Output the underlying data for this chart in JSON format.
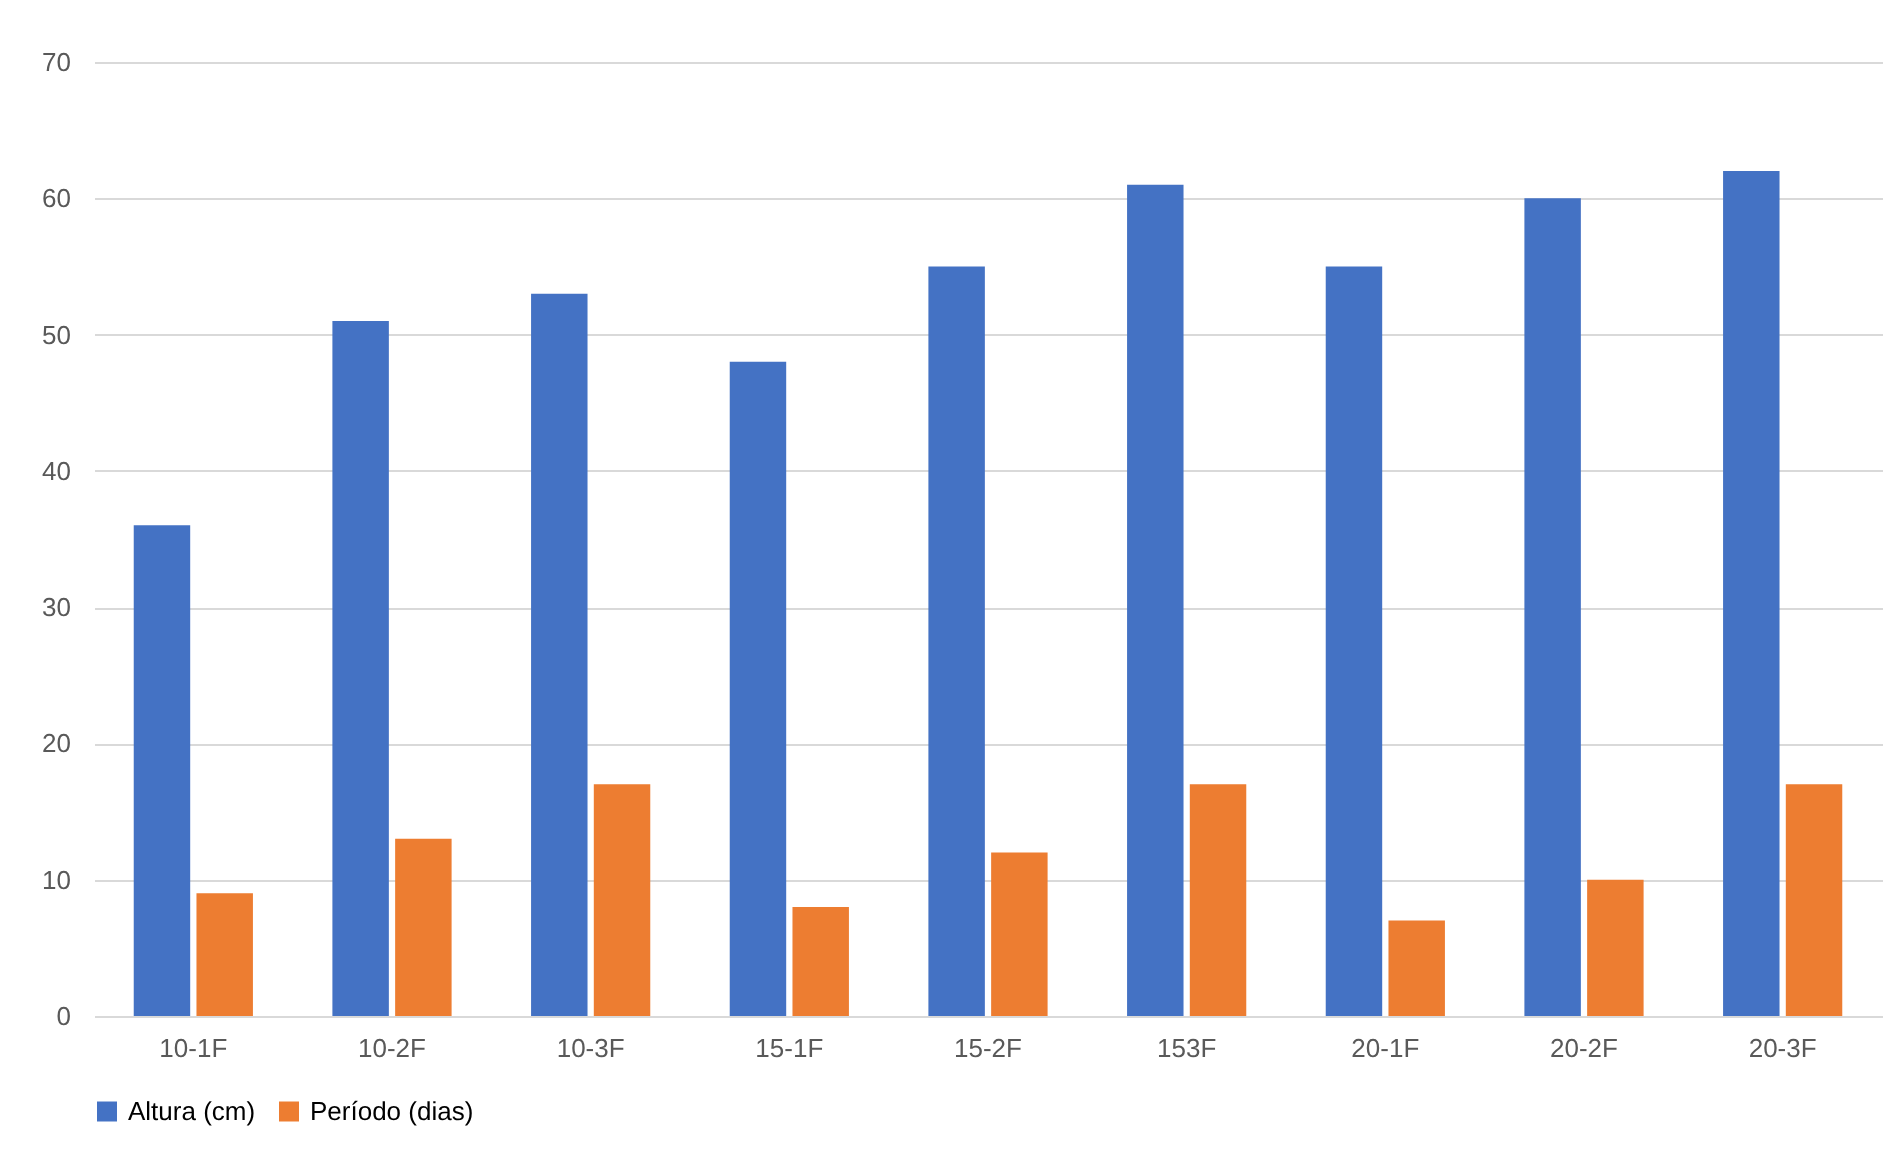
{
  "chart_data": {
    "type": "bar",
    "categories": [
      "10-1F",
      "10-2F",
      "10-3F",
      "15-1F",
      "15-2F",
      "153F",
      "20-1F",
      "20-2F",
      "20-3F"
    ],
    "series": [
      {
        "name": "Altura (cm)",
        "color": "#4472c4",
        "values": [
          36,
          51,
          53,
          48,
          55,
          61,
          55,
          60,
          62
        ]
      },
      {
        "name": "Período (dias)",
        "color": "#ed7d31",
        "values": [
          9,
          13,
          17,
          8,
          12,
          17,
          7,
          10,
          17
        ]
      }
    ],
    "ylim": [
      0,
      70
    ],
    "yticks": [
      0,
      10,
      20,
      30,
      40,
      50,
      60,
      70
    ],
    "grid": "y",
    "legend": "bottom"
  }
}
